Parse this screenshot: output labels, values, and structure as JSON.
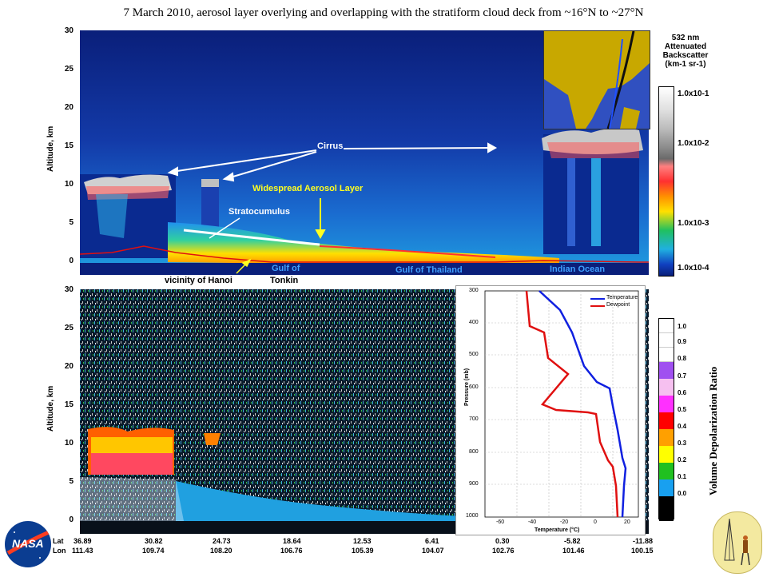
{
  "title": "7 March 2010, aerosol layer overlying and overlapping with the stratiform cloud deck from ~16°N to ~27°N",
  "panel1": {
    "ylabel": "Altitude, km",
    "yticks": [
      "30",
      "25",
      "20",
      "15",
      "10",
      "5",
      "0"
    ],
    "annotations": {
      "cirrus": "Cirrus",
      "aerosol": "Widespread Aerosol Layer",
      "stratocumulus": "Stratocumulus",
      "gulf_tonkin_1": "Gulf of",
      "gulf_tonkin_2": "Tonkin",
      "gulf_thailand": "Gulf of Thailand",
      "indian_ocean": "Indian Ocean",
      "hanoi": "vicinity of Hanoi"
    },
    "colorbar": {
      "title1": "532 nm",
      "title2": "Attenuated",
      "title3": "Backscatter",
      "units": "(km-1 sr-1)",
      "labels": [
        "1.0x10-1",
        "1.0x10-2",
        "1.0x10-3",
        "1.0x10-4"
      ]
    }
  },
  "panel2": {
    "ylabel": "Altitude, km",
    "yticks": [
      "30",
      "25",
      "20",
      "15",
      "10",
      "5",
      "0"
    ],
    "colorbar": {
      "title": "Volume Depolarization Ratio",
      "labels": [
        "1.0",
        "0.9",
        "0.8",
        "0.7",
        "0.6",
        "0.5",
        "0.4",
        "0.3",
        "0.2",
        "0.1",
        "0.0"
      ],
      "colors": [
        "#ffffff",
        "#ffffff",
        "#ffffff",
        "#a050f0",
        "#f6c0f0",
        "#ff30ff",
        "#ff0000",
        "#ffa000",
        "#ffff00",
        "#20c020",
        "#18a0f0",
        "#000000"
      ]
    }
  },
  "sounding": {
    "xlabel": "Temperature (°C)",
    "ylabel": "Pressure (mb)",
    "legend": [
      "Temperature",
      "Dewpoint"
    ],
    "xticks": [
      "-60",
      "-40",
      "-20",
      "0",
      "20"
    ],
    "yticks": [
      "300",
      "400",
      "500",
      "600",
      "700",
      "800",
      "900",
      "1000"
    ],
    "colors": {
      "temperature": "#1020e0",
      "dewpoint": "#e01010"
    }
  },
  "axis_bottom": {
    "lat_label": "Lat",
    "lon_label": "Lon",
    "lat": [
      "36.89",
      "30.82",
      "24.73",
      "18.64",
      "12.53",
      "6.41",
      "0.30",
      "-5.82",
      "-11.88"
    ],
    "lon": [
      "111.43",
      "109.74",
      "108.20",
      "106.76",
      "105.39",
      "104.07",
      "102.76",
      "101.46",
      "100.15"
    ]
  },
  "logos": {
    "nasa": "NASA"
  }
}
